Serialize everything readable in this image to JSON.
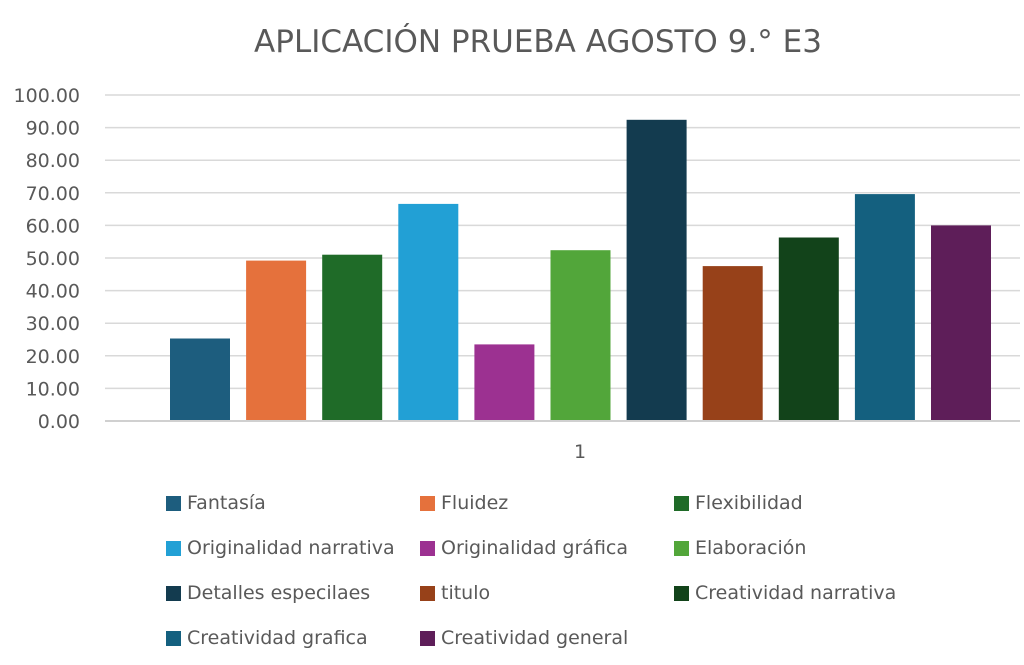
{
  "chart_data": {
    "type": "bar",
    "title": "APLICACIÓN PRUEBA AGOSTO 9.° E3",
    "xlabel": "",
    "ylabel": "",
    "categories": [
      "1"
    ],
    "ylim": [
      0,
      100
    ],
    "yticks": [
      "0.00",
      "10.00",
      "20.00",
      "30.00",
      "40.00",
      "50.00",
      "60.00",
      "70.00",
      "80.00",
      "90.00",
      "100.00"
    ],
    "grid": true,
    "legend_position": "bottom",
    "series": [
      {
        "name": "Fantasía",
        "values": [
          25.3
        ],
        "color": "#1d5d7e"
      },
      {
        "name": "Fluidez",
        "values": [
          49.2
        ],
        "color": "#e5713c"
      },
      {
        "name": "Flexibilidad",
        "values": [
          51.0
        ],
        "color": "#1f6b28"
      },
      {
        "name": "Originalidad narrativa",
        "values": [
          66.6
        ],
        "color": "#22a0d5"
      },
      {
        "name": "Originalidad gráfica",
        "values": [
          23.5
        ],
        "color": "#9c3191"
      },
      {
        "name": "Elaboración",
        "values": [
          52.4
        ],
        "color": "#52a63a"
      },
      {
        "name": "Detalles especilaes",
        "values": [
          92.4
        ],
        "color": "#133b4f"
      },
      {
        "name": "titulo",
        "values": [
          47.5
        ],
        "color": "#974119"
      },
      {
        "name": "Creatividad narrativa",
        "values": [
          56.3
        ],
        "color": "#12431a"
      },
      {
        "name": "Creatividad grafica",
        "values": [
          69.6
        ],
        "color": "#14607f"
      },
      {
        "name": "Creatividad general",
        "values": [
          60.0
        ],
        "color": "#5e1e59"
      }
    ]
  }
}
